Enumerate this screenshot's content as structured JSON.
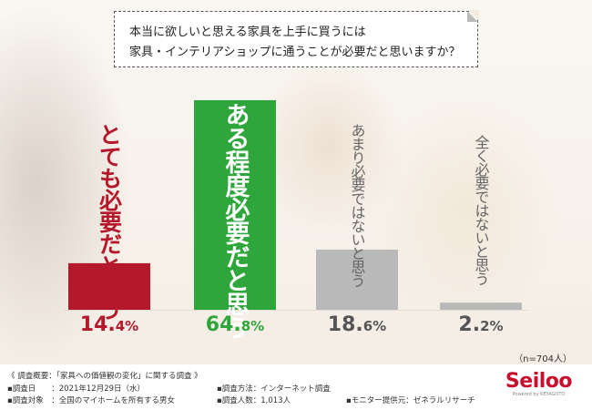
{
  "question": {
    "line1": "本当に欲しいと思える家具を上手に買うには",
    "line2": "家具・インテリアショップに通うことが必要だと思いますか？"
  },
  "chart_data": {
    "type": "bar",
    "categories": [
      "とても必要だと思う",
      "ある程度必要だと思う",
      "あまり必要ではないと思う",
      "全く必要ではないと思う"
    ],
    "values": [
      14.4,
      64.8,
      18.6,
      2.2
    ],
    "value_labels": [
      {
        "int": "14.",
        "dec": "4%"
      },
      {
        "int": "64.",
        "dec": "8%"
      },
      {
        "int": "18.",
        "dec": "6%"
      },
      {
        "int": "2.",
        "dec": "2%"
      }
    ],
    "colors": [
      "#b5172b",
      "#2fa63c",
      "#b9b9b9",
      "#b9b9b9"
    ],
    "label_colors": [
      "#b5172b",
      "#ffffff",
      "#666666",
      "#666666"
    ],
    "ylim": [
      0,
      100
    ],
    "n_label": "（n=704人）"
  },
  "footer": {
    "summary": "《 調査概要：「家具への価値観の変化」に関する調査 》",
    "date": "▪調査日　　：2021年12月29日（水）",
    "target": "▪調査対象　：全国のマイホームを所有する男女",
    "method": "▪調査方法：インターネット調査",
    "count": "▪調査人数：1,013人",
    "provider": "▪モニター提供元：ゼネラルリサーチ",
    "logo": "Seiloo",
    "logo_sub": "Powered by KEYAGOTO"
  }
}
